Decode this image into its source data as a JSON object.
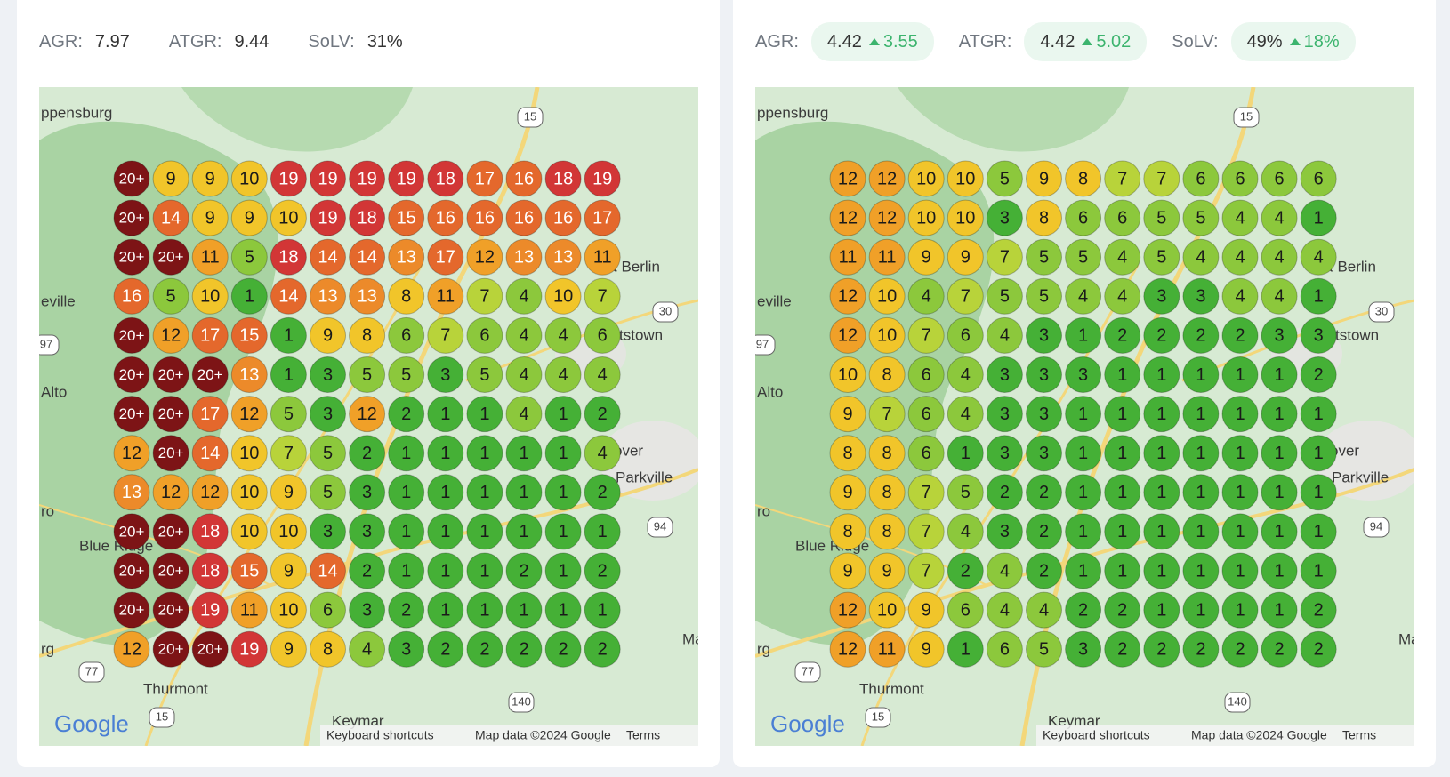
{
  "panels": [
    {
      "stats": [
        {
          "label": "AGR:",
          "value": "7.97"
        },
        {
          "label": "ATGR:",
          "value": "9.44"
        },
        {
          "label": "SoLV:",
          "value": "31%"
        }
      ],
      "grid": [
        [
          "20+",
          9,
          9,
          10,
          19,
          19,
          19,
          19,
          18,
          17,
          16,
          18,
          19
        ],
        [
          "20+",
          14,
          9,
          9,
          10,
          19,
          18,
          15,
          16,
          16,
          16,
          16,
          17
        ],
        [
          "20+",
          "20+",
          11,
          5,
          18,
          14,
          14,
          13,
          17,
          12,
          13,
          13,
          11
        ],
        [
          16,
          5,
          10,
          1,
          14,
          13,
          13,
          8,
          11,
          7,
          4,
          10,
          7
        ],
        [
          "20+",
          12,
          17,
          15,
          1,
          9,
          8,
          6,
          7,
          6,
          4,
          4,
          6
        ],
        [
          "20+",
          "20+",
          "20+",
          13,
          1,
          3,
          5,
          5,
          3,
          5,
          4,
          4,
          4
        ],
        [
          "20+",
          "20+",
          17,
          12,
          5,
          3,
          12,
          2,
          1,
          1,
          4,
          1,
          2
        ],
        [
          12,
          "20+",
          14,
          10,
          7,
          5,
          2,
          1,
          1,
          1,
          1,
          1,
          4
        ],
        [
          13,
          12,
          12,
          10,
          9,
          5,
          3,
          1,
          1,
          1,
          1,
          1,
          2
        ],
        [
          "20+",
          "20+",
          18,
          10,
          10,
          3,
          3,
          1,
          1,
          1,
          1,
          1,
          1
        ],
        [
          "20+",
          "20+",
          18,
          15,
          9,
          14,
          2,
          1,
          1,
          1,
          2,
          1,
          2
        ],
        [
          "20+",
          "20+",
          19,
          11,
          10,
          6,
          3,
          2,
          1,
          1,
          1,
          1,
          1
        ],
        [
          12,
          "20+",
          "20+",
          19,
          9,
          8,
          4,
          3,
          2,
          2,
          2,
          2,
          2
        ]
      ]
    },
    {
      "stats": [
        {
          "label": "AGR:",
          "value": "4.42",
          "change": "3.55"
        },
        {
          "label": "ATGR:",
          "value": "4.42",
          "change": "5.02"
        },
        {
          "label": "SoLV:",
          "value": "49%",
          "change": "18%"
        }
      ],
      "grid": [
        [
          12,
          12,
          10,
          10,
          5,
          9,
          8,
          7,
          7,
          6,
          6,
          6,
          6
        ],
        [
          12,
          12,
          10,
          10,
          3,
          8,
          6,
          6,
          5,
          5,
          4,
          4,
          1
        ],
        [
          11,
          11,
          9,
          9,
          7,
          5,
          5,
          4,
          5,
          4,
          4,
          4,
          4
        ],
        [
          12,
          10,
          4,
          7,
          5,
          5,
          4,
          4,
          3,
          3,
          4,
          4,
          1
        ],
        [
          12,
          10,
          7,
          6,
          4,
          3,
          1,
          2,
          2,
          2,
          2,
          3,
          3
        ],
        [
          10,
          8,
          6,
          4,
          3,
          3,
          3,
          1,
          1,
          1,
          1,
          1,
          2
        ],
        [
          9,
          7,
          6,
          4,
          3,
          3,
          1,
          1,
          1,
          1,
          1,
          1,
          1
        ],
        [
          8,
          8,
          6,
          1,
          3,
          3,
          1,
          1,
          1,
          1,
          1,
          1,
          1
        ],
        [
          9,
          8,
          7,
          5,
          2,
          2,
          1,
          1,
          1,
          1,
          1,
          1,
          1
        ],
        [
          8,
          8,
          7,
          4,
          3,
          2,
          1,
          1,
          1,
          1,
          1,
          1,
          1
        ],
        [
          9,
          9,
          7,
          2,
          4,
          2,
          1,
          1,
          1,
          1,
          1,
          1,
          1
        ],
        [
          12,
          10,
          9,
          6,
          4,
          4,
          2,
          2,
          1,
          1,
          1,
          1,
          2
        ],
        [
          12,
          11,
          9,
          1,
          6,
          5,
          3,
          2,
          2,
          2,
          2,
          2,
          2
        ]
      ]
    }
  ],
  "map": {
    "labels": [
      "ppensburg",
      "t Berlin",
      "eville",
      "tstown",
      "Alto",
      "over",
      "Parkville",
      "ro",
      "Blue Ridge",
      "Thurmont",
      "Keymar",
      "rg",
      "Ma"
    ],
    "shields": [
      "15",
      "30",
      "94",
      "97",
      "77",
      "140",
      "15"
    ],
    "logo": "Google",
    "footer": [
      "Keyboard shortcuts",
      "Map data ©2024 Google",
      "Terms"
    ]
  }
}
